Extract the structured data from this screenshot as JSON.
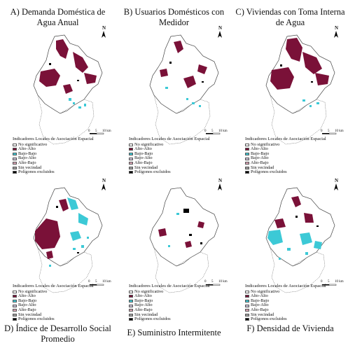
{
  "panels": [
    {
      "title": "A) Demanda Doméstica de Agua Anual",
      "legend_title": "Indicadores Locales de Asociación Espacial",
      "legend_items": [
        "No significativo",
        "Alto-Alto",
        "Bajo-Bajo",
        "Bajo-Alto",
        "Alto-Bajo",
        "Sin vecindad",
        "Polígonos excluidos"
      ],
      "scale_labels": [
        "0",
        "5",
        "10 km"
      ],
      "north_label": "N"
    },
    {
      "title": "B) Usuarios Domésticos con Medidor",
      "legend_title": "Indicadores Locales de Asociación Espacial",
      "legend_items": [
        "No significativo",
        "Alto-Alto",
        "Bajo-Bajo",
        "Bajo-Alto",
        "Alto-Bajo",
        "Sin vecindad",
        "Polígonos excluidos"
      ],
      "scale_labels": [
        "0",
        "5",
        "10 km"
      ],
      "north_label": "N"
    },
    {
      "title": "C) Viviendas con Toma Interna de Agua",
      "legend_title": "Indicadores Locales de Asociación Espacial",
      "legend_items": [
        "No significativo",
        "Alto-Alto",
        "Bajo-Bajo",
        "Bajo-Alto",
        "Alto-Bajo",
        "Sin vecindad",
        "Polígonos excluidos"
      ],
      "scale_labels": [
        "0",
        "5",
        "10 km"
      ],
      "north_label": "N"
    },
    {
      "title": "D) Índice de Desarrollo Social Promedio",
      "legend_title": "Indicadores Locales de Asociación Espacial",
      "legend_items": [
        "No significativo",
        "Alto-Alto",
        "Bajo-Bajo",
        "Bajo-Alto",
        "Alto-Bajo",
        "Sin vecindad",
        "Polígonos excluidos"
      ],
      "scale_labels": [
        "0",
        "5",
        "10 km"
      ],
      "north_label": "N"
    },
    {
      "title": "E) Suministro Intermitente",
      "legend_title": "Indicadores Locales de Asociación Espacial",
      "legend_items": [
        "No significativo",
        "Alto-Alto",
        "Bajo-Bajo",
        "Bajo-Alto",
        "Alto-Bajo",
        "Sin vecindad",
        "Polígonos excluidos"
      ],
      "scale_labels": [
        "0",
        "5",
        "10 km"
      ],
      "north_label": "N"
    },
    {
      "title": "F) Densidad de Vivienda",
      "legend_title": "Indicadores Locales de Asociación Espacial",
      "legend_items": [
        "No significativo",
        "Alto-Alto",
        "Bajo-Bajo",
        "Bajo-Alto",
        "Alto-Bajo",
        "Sin vecindad",
        "Polígonos excluidos"
      ],
      "scale_labels": [
        "0",
        "5",
        "10 km"
      ],
      "north_label": "N"
    }
  ],
  "colors": {
    "no_significativo": "#ffffff",
    "alto_alto": "#7a1138",
    "bajo_bajo": "#3cc9d6",
    "bajo_alto": "#c9c0d6",
    "alto_bajo": "#d9a3b3",
    "sin_vecindad": "#9e9e9e",
    "poligonos_excluidos": "#000000"
  }
}
